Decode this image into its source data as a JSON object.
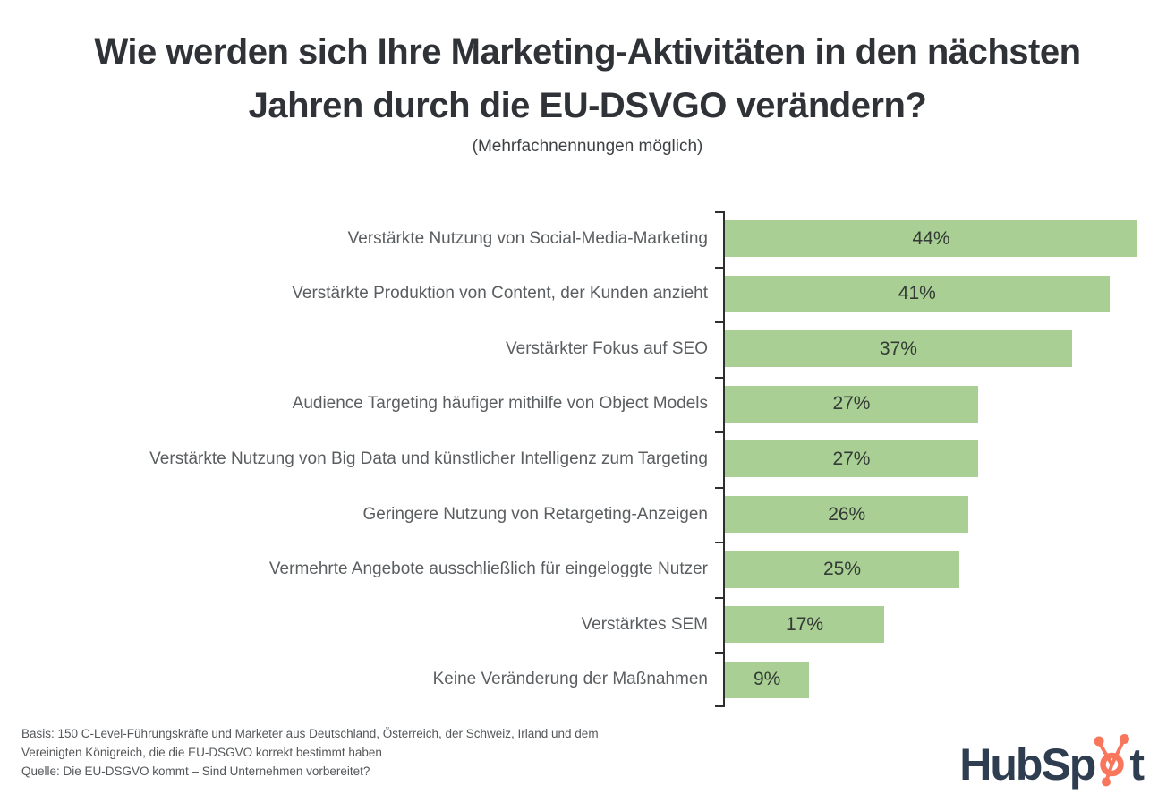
{
  "header": {
    "title_line1": "Wie werden sich Ihre Marketing-Aktivitäten in den nächsten",
    "title_line2": "Jahren durch die EU-DSVGO verändern?",
    "subtitle": "(Mehrfachnennungen möglich)"
  },
  "chart_data": {
    "type": "bar",
    "orientation": "horizontal",
    "title": "Wie werden sich Ihre Marketing-Aktivitäten in den nächsten Jahren durch die EU-DSVGO verändern?",
    "subtitle": "(Mehrfachnennungen möglich)",
    "categories": [
      "Verstärkte Nutzung von Social-Media-Marketing",
      "Verstärkte Produktion von Content, der Kunden anzieht",
      "Verstärkter Fokus auf SEO",
      "Audience Targeting häufiger mithilfe von Object Models",
      "Verstärkte Nutzung von Big Data und künstlicher Intelligenz zum Targeting",
      "Geringere Nutzung von Retargeting-Anzeigen",
      "Vermehrte Angebote ausschließlich für eingeloggte Nutzer",
      "Verstärktes SEM",
      "Keine Veränderung der Maßnahmen"
    ],
    "values": [
      44,
      41,
      37,
      27,
      27,
      26,
      25,
      17,
      9
    ],
    "value_suffix": "%",
    "value_label_position": "inside-center",
    "xlim": [
      0,
      48
    ],
    "grid": false,
    "legend": false,
    "bar_color": "#a9cf94",
    "axis_color": "#2e2e2e",
    "value_label_color": "#333a35",
    "category_label_color": "#5a5e60"
  },
  "footer": {
    "lines": [
      "Basis: 150 C-Level-Führungskräfte und Marketer aus Deutschland, Österreich, der Schweiz, Irland und dem",
      "Vereinigten Königreich, die die EU-DSGVO korrekt bestimmt haben",
      "Quelle: Die EU-DSGVO kommt – Sind Unternehmen vorbereitet?"
    ]
  },
  "branding": {
    "logo_name": "HubSpot",
    "logo_text_pre": "HubSp",
    "logo_text_post": "t",
    "navy": "#2e3d50",
    "orange": "#f8765c"
  }
}
